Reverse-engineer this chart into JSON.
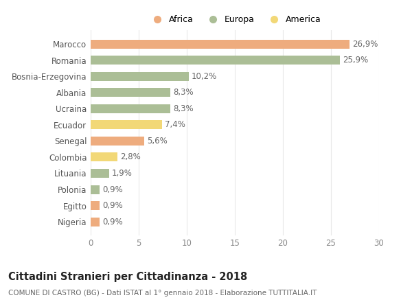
{
  "countries": [
    "Marocco",
    "Romania",
    "Bosnia-Erzegovina",
    "Albania",
    "Ucraina",
    "Ecuador",
    "Senegal",
    "Colombia",
    "Lituania",
    "Polonia",
    "Egitto",
    "Nigeria"
  ],
  "values": [
    26.9,
    25.9,
    10.2,
    8.3,
    8.3,
    7.4,
    5.6,
    2.8,
    1.9,
    0.9,
    0.9,
    0.9
  ],
  "labels": [
    "26,9%",
    "25,9%",
    "10,2%",
    "8,3%",
    "8,3%",
    "7,4%",
    "5,6%",
    "2,8%",
    "1,9%",
    "0,9%",
    "0,9%",
    "0,9%"
  ],
  "categories": [
    "Africa",
    "Europa",
    "America"
  ],
  "continent": [
    "Africa",
    "Europa",
    "Europa",
    "Europa",
    "Europa",
    "America",
    "Africa",
    "America",
    "Europa",
    "Europa",
    "Africa",
    "Africa"
  ],
  "colors": {
    "Africa": "#EEAC7E",
    "Europa": "#ABBE96",
    "America": "#F2D877"
  },
  "xlim": [
    0,
    30
  ],
  "xticks": [
    0,
    5,
    10,
    15,
    20,
    25,
    30
  ],
  "title": "Cittadini Stranieri per Cittadinanza - 2018",
  "subtitle": "COMUNE DI CASTRO (BG) - Dati ISTAT al 1° gennaio 2018 - Elaborazione TUTTITALIA.IT",
  "background_color": "#ffffff",
  "grid_color": "#e8e8e8",
  "bar_height": 0.55,
  "label_fontsize": 8.5,
  "tick_fontsize": 8.5,
  "title_fontsize": 10.5,
  "subtitle_fontsize": 7.5
}
